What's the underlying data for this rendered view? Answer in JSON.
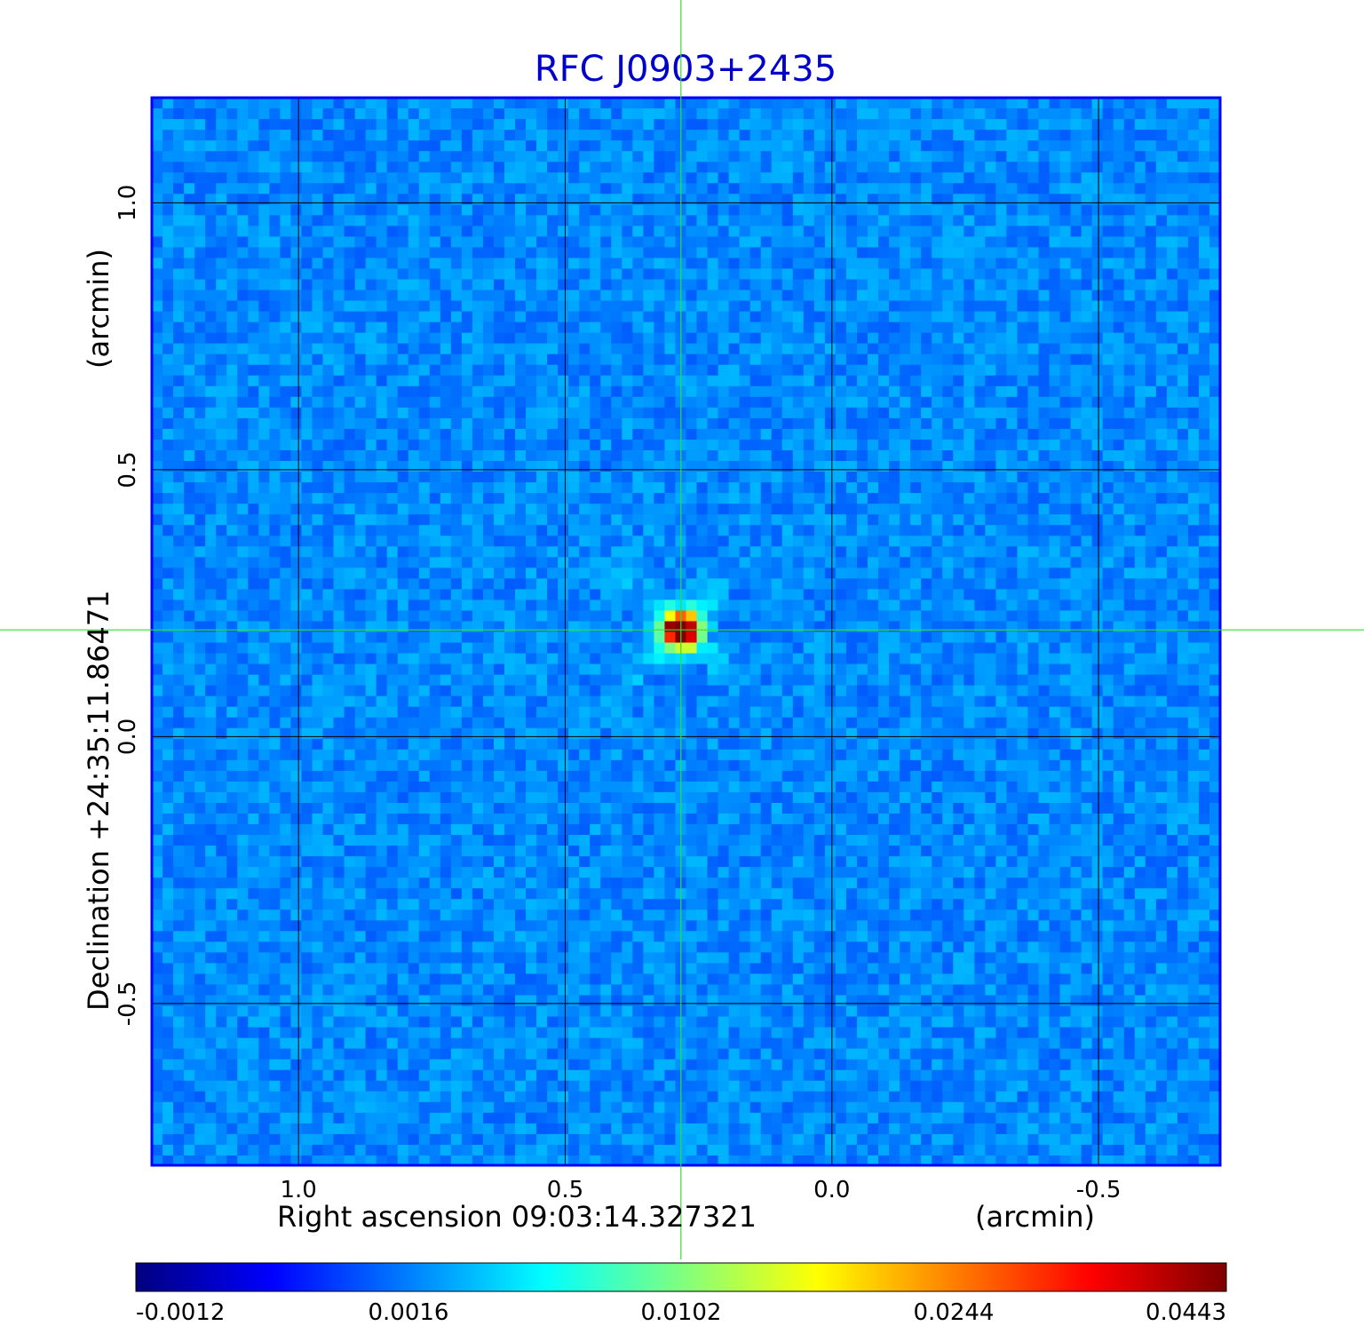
{
  "chart_data": {
    "type": "heatmap",
    "title": "RFC J0903+2435",
    "xlabel": "Right ascension  09:03:14.327321",
    "xunit": "(arcmin)",
    "ylabel": "Declination  +24:35:11.86471",
    "yunit": "(arcmin)",
    "xlim": [
      1.275,
      -0.728
    ],
    "ylim": [
      -0.803,
      1.197
    ],
    "x_ticks": [
      1.0,
      0.5,
      0.0,
      -0.5
    ],
    "x_tick_labels": [
      "1.0",
      "0.5",
      "0.0",
      "-0.5"
    ],
    "y_ticks": [
      1.0,
      0.5,
      0.0,
      -0.5
    ],
    "y_tick_labels": [
      "1.0",
      "0.5",
      "0.0",
      "-0.5"
    ],
    "grid": true,
    "crosshair": {
      "x": 0.283,
      "y": 0.2
    },
    "source": {
      "x": 0.283,
      "y": 0.2,
      "peak": 0.0443
    },
    "colorbar": {
      "values": [
        -0.0012,
        0.0016,
        0.0102,
        0.0244,
        0.0443
      ],
      "labels": [
        "-0.0012",
        "0.0016",
        "0.0102",
        "0.0244",
        "0.0443"
      ],
      "colormap": [
        "#00007f",
        "#0000ff",
        "#007fff",
        "#00ffff",
        "#7fff7f",
        "#ffff00",
        "#ff7f00",
        "#ff0000",
        "#7f0000"
      ]
    },
    "colors": {
      "title": "#0000cc",
      "frame": "#0000ff",
      "grid": "#000000",
      "crosshair": "#33dd33",
      "background_noise": "#1a6dff"
    }
  }
}
